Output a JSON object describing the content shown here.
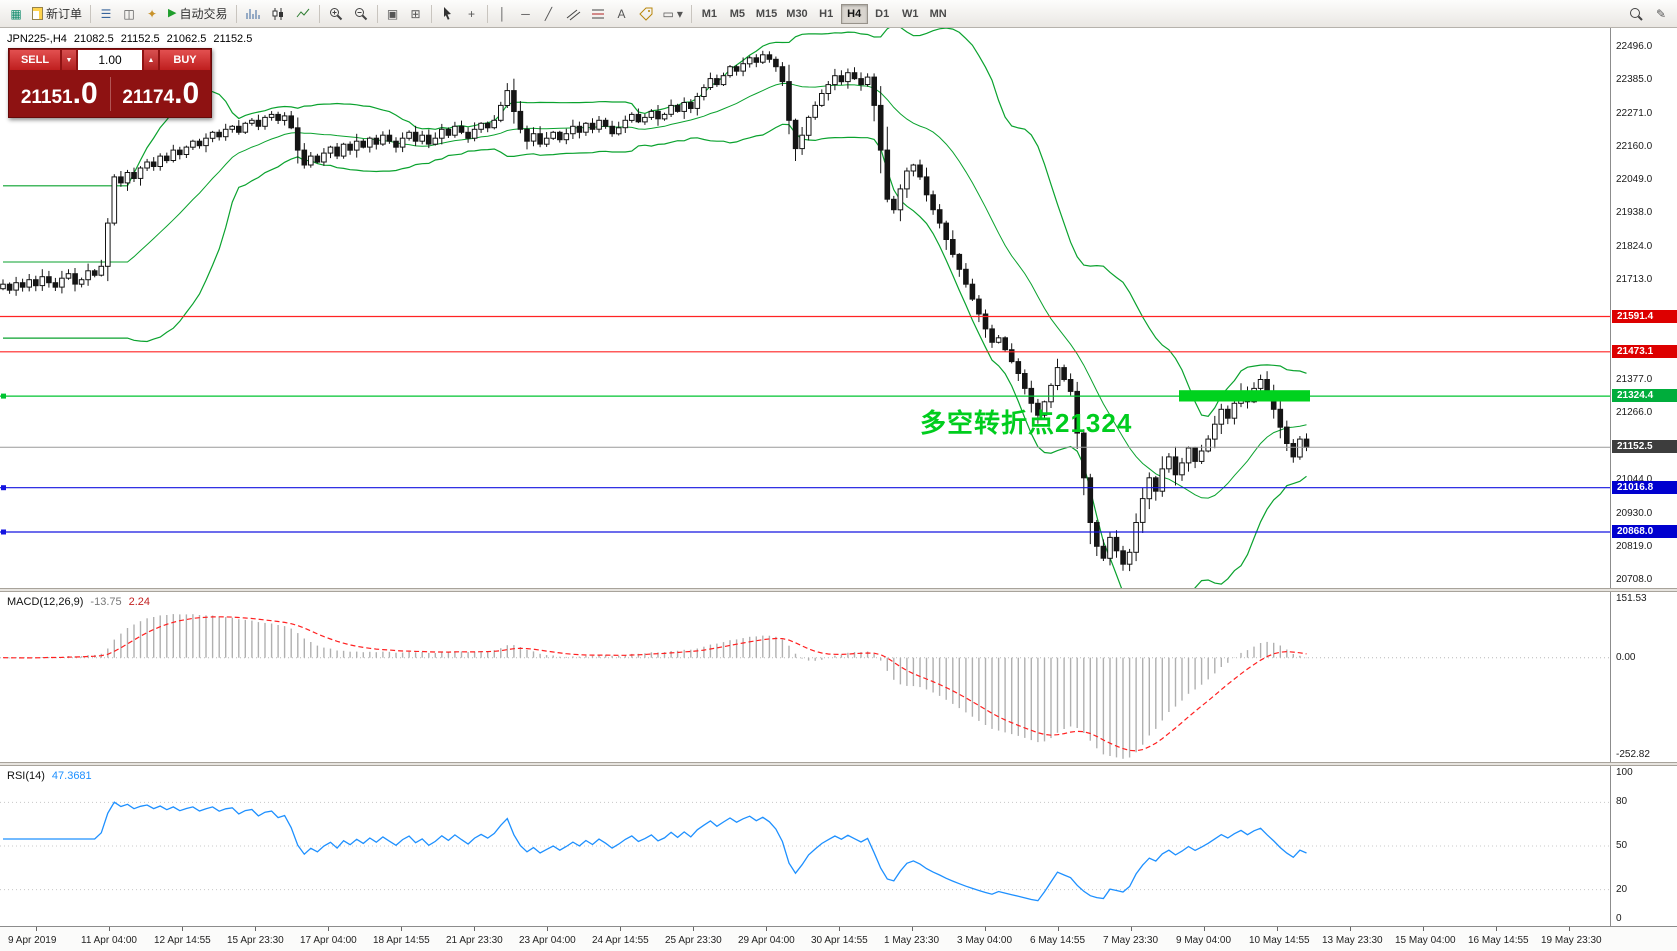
{
  "icons": {
    "new_chart": "▦",
    "market_watch": "☰",
    "data_window": "◫",
    "navigator": "✦",
    "auto_trading_play": "▶",
    "crosshair": "+",
    "vline": "│",
    "hline": "─",
    "trendline": "╱",
    "text_tool": "A",
    "shapes": "▭",
    "dropdown": "▾",
    "pencil": "✎",
    "volume_up": "▲",
    "volume_down": "▼",
    "arrange": "▣",
    "grid": "⊞"
  },
  "toolbar": {
    "new_order_label": "新订单",
    "auto_trading_label": "自动交易",
    "timeframes": [
      "M1",
      "M5",
      "M15",
      "M30",
      "H1",
      "H4",
      "D1",
      "W1",
      "MN"
    ],
    "active_timeframe": "H4"
  },
  "trade_panel": {
    "sell_label": "SELL",
    "buy_label": "BUY",
    "volume": "1.00",
    "sell_price_main": "21151",
    "sell_price_frac": ".0",
    "buy_price_main": "21174",
    "buy_price_frac": ".0"
  },
  "chart": {
    "symbol_period": "JPN225-,H4",
    "open": "21082.5",
    "high": "21152.5",
    "low": "21062.5",
    "close": "21152.5",
    "price_axis_labels": [
      {
        "text": "22496.0",
        "price": 22496
      },
      {
        "text": "22385.0",
        "price": 22385
      },
      {
        "text": "22271.0",
        "price": 22271
      },
      {
        "text": "22160.0",
        "price": 22160
      },
      {
        "text": "22049.0",
        "price": 22049
      },
      {
        "text": "21938.0",
        "price": 21938
      },
      {
        "text": "21824.0",
        "price": 21824
      },
      {
        "text": "21713.0",
        "price": 21713
      },
      {
        "text": "21377.0",
        "price": 21377
      },
      {
        "text": "21266.0",
        "price": 21266
      },
      {
        "text": "21044.0",
        "price": 21044
      },
      {
        "text": "20930.0",
        "price": 20930
      },
      {
        "text": "20819.0",
        "price": 20819
      },
      {
        "text": "20708.0",
        "price": 20708
      }
    ],
    "price_badges": [
      {
        "text": "21591.4",
        "price": 21591.4,
        "type": "red"
      },
      {
        "text": "21473.1",
        "price": 21473.1,
        "type": "red"
      },
      {
        "text": "21324.4",
        "price": 21324.4,
        "type": "green"
      },
      {
        "text": "21152.5",
        "price": 21152.5,
        "type": "current"
      },
      {
        "text": "21016.8",
        "price": 21016.8,
        "type": "blue"
      },
      {
        "text": "20868.0",
        "price": 20868,
        "type": "blue"
      }
    ],
    "levels": [
      {
        "price": 21591.4,
        "color": "#ff2323",
        "marker": false
      },
      {
        "price": 21473.1,
        "color": "#ff2323",
        "marker": false
      },
      {
        "price": 21324.4,
        "color": "#00c431",
        "marker": true
      },
      {
        "price": 21016.8,
        "color": "#1414e0",
        "marker": true
      },
      {
        "price": 20868,
        "color": "#1414e0",
        "marker": true
      }
    ]
  },
  "macd": {
    "label": "MACD(12,26,9)",
    "value_main": "-13.75",
    "value_signal": "2.24",
    "range": [
      -270,
      170
    ],
    "axis_labels": [
      {
        "text": "151.53",
        "value": 151.53
      },
      {
        "text": "0.00",
        "value": 0
      },
      {
        "text": "-252.82",
        "value": -252.82
      }
    ]
  },
  "rsi": {
    "label": "RSI(14)",
    "value": "47.3681",
    "range": [
      -5,
      105
    ],
    "axis_labels": [
      {
        "text": "100",
        "value": 100
      },
      {
        "text": "80",
        "value": 80
      },
      {
        "text": "50",
        "value": 50
      },
      {
        "text": "20",
        "value": 20
      },
      {
        "text": "0",
        "value": 0
      }
    ],
    "levels": [
      80,
      50,
      20
    ]
  },
  "time_axis": {
    "labels": [
      "9 Apr 2019",
      "11 Apr 04:00",
      "12 Apr 14:55",
      "15 Apr 23:30",
      "17 Apr 04:00",
      "18 Apr 14:55",
      "21 Apr 23:30",
      "23 Apr 04:00",
      "24 Apr 14:55",
      "25 Apr 23:30",
      "29 Apr 04:00",
      "30 Apr 14:55",
      "1 May 23:30",
      "3 May 04:00",
      "6 May 14:55",
      "7 May 23:30",
      "9 May 04:00",
      "10 May 14:55",
      "13 May 23:30",
      "15 May 04:00",
      "16 May 14:55",
      "19 May 23:30"
    ]
  },
  "chart_data": {
    "type": "candlestick",
    "symbol": "JPN225-",
    "timeframe": "H4",
    "current_price": 21152.5,
    "price_range": [
      20680,
      22560
    ],
    "closes": [
      21700,
      21680,
      21705,
      21690,
      21715,
      21695,
      21725,
      21705,
      21690,
      21720,
      21735,
      21700,
      21715,
      21745,
      21730,
      21760,
      21905,
      22060,
      22040,
      22075,
      22055,
      22090,
      22110,
      22095,
      22130,
      22115,
      22150,
      22135,
      22160,
      22180,
      22165,
      22190,
      22210,
      22195,
      22220,
      22230,
      22210,
      22240,
      22250,
      22230,
      22260,
      22270,
      22250,
      22265,
      22225,
      22150,
      22100,
      22130,
      22110,
      22140,
      22160,
      22130,
      22170,
      22150,
      22180,
      22160,
      22190,
      22170,
      22200,
      22180,
      22160,
      22190,
      22210,
      22180,
      22200,
      22170,
      22190,
      22220,
      22200,
      22230,
      22210,
      22190,
      22220,
      22240,
      22225,
      22250,
      22300,
      22350,
      22280,
      22220,
      22180,
      22205,
      22170,
      22190,
      22210,
      22185,
      22205,
      22230,
      22210,
      22240,
      22220,
      22250,
      22230,
      22205,
      22225,
      22250,
      22270,
      22245,
      22260,
      22280,
      22255,
      22270,
      22300,
      22280,
      22310,
      22290,
      22330,
      22360,
      22390,
      22370,
      22400,
      22430,
      22415,
      22440,
      22460,
      22445,
      22470,
      22455,
      22430,
      22380,
      22250,
      22155,
      22200,
      22260,
      22300,
      22340,
      22370,
      22400,
      22380,
      22410,
      22390,
      22370,
      22395,
      22300,
      22150,
      21985,
      21950,
      22020,
      22080,
      22100,
      22060,
      22000,
      21950,
      21905,
      21850,
      21800,
      21750,
      21700,
      21650,
      21600,
      21550,
      21505,
      21520,
      21480,
      21440,
      21400,
      21350,
      21300,
      21260,
      21305,
      21360,
      21420,
      21380,
      21340,
      21200,
      21050,
      20900,
      20820,
      20780,
      20850,
      20805,
      20760,
      20800,
      20900,
      20980,
      21050,
      21005,
      21080,
      21120,
      21060,
      21100,
      21150,
      21105,
      21140,
      21180,
      21230,
      21280,
      21250,
      21300,
      21340,
      21305,
      21350,
      21380,
      21330,
      21280,
      21220,
      21165,
      21120,
      21180,
      21152.5
    ],
    "indicators": {
      "bollinger_period": 20,
      "bollinger_deviation": 2,
      "macd": [
        12,
        26,
        9
      ],
      "rsi_period": 14
    },
    "annotation": {
      "text": "多空转折点21324",
      "index": 140,
      "price": 21301,
      "color": "#00cd1e"
    },
    "highlight_zone": {
      "start_index": 180,
      "end_index": 200,
      "price_top": 21344,
      "price_bottom": 21306,
      "color": "#00d21e"
    }
  }
}
